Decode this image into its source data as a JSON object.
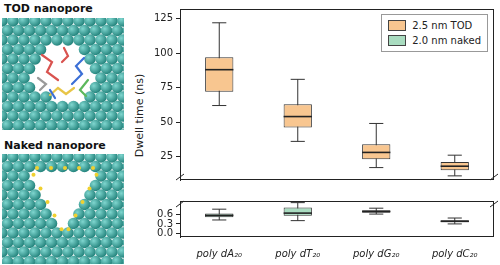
{
  "chart_data": {
    "type": "box",
    "y_label": "Dwell time (ns)",
    "categories": [
      "poly dA₂₀",
      "poly dT₂₀",
      "poly dG₂₀",
      "poly dC₂₀"
    ],
    "series": [
      {
        "name": "2.5 nm TOD",
        "color": "#f8c690",
        "values": [
          88,
          54,
          28,
          18
        ],
        "q1": [
          72,
          46,
          23,
          15
        ],
        "q3": [
          97,
          63,
          34,
          21
        ],
        "whisker_low": [
          62,
          36,
          17,
          11
        ],
        "whisker_high": [
          122,
          81,
          49,
          26
        ]
      },
      {
        "name": "2.0 nm naked",
        "color": "#a9dcc0",
        "axis": "y2",
        "values": [
          0.56,
          0.63,
          0.68,
          0.38
        ],
        "q1": [
          0.5,
          0.55,
          0.64,
          0.35
        ],
        "q3": [
          0.62,
          0.8,
          0.72,
          0.41
        ],
        "whisker_low": [
          0.42,
          0.4,
          0.6,
          0.3
        ],
        "whisker_high": [
          0.75,
          0.95,
          0.78,
          0.48
        ]
      }
    ],
    "ylim": [
      8,
      132
    ],
    "yticks": [
      25,
      50,
      75,
      100,
      125
    ],
    "y2lim": [
      -0.1,
      1.0
    ],
    "y2ticks": [
      {
        "value": 0,
        "label": "0.0"
      },
      0.3,
      0.6
    ],
    "grid": false,
    "legend": "upper right"
  },
  "images": [
    {
      "label": "TOD nanopore"
    },
    {
      "label": "Naked nanopore"
    }
  ]
}
